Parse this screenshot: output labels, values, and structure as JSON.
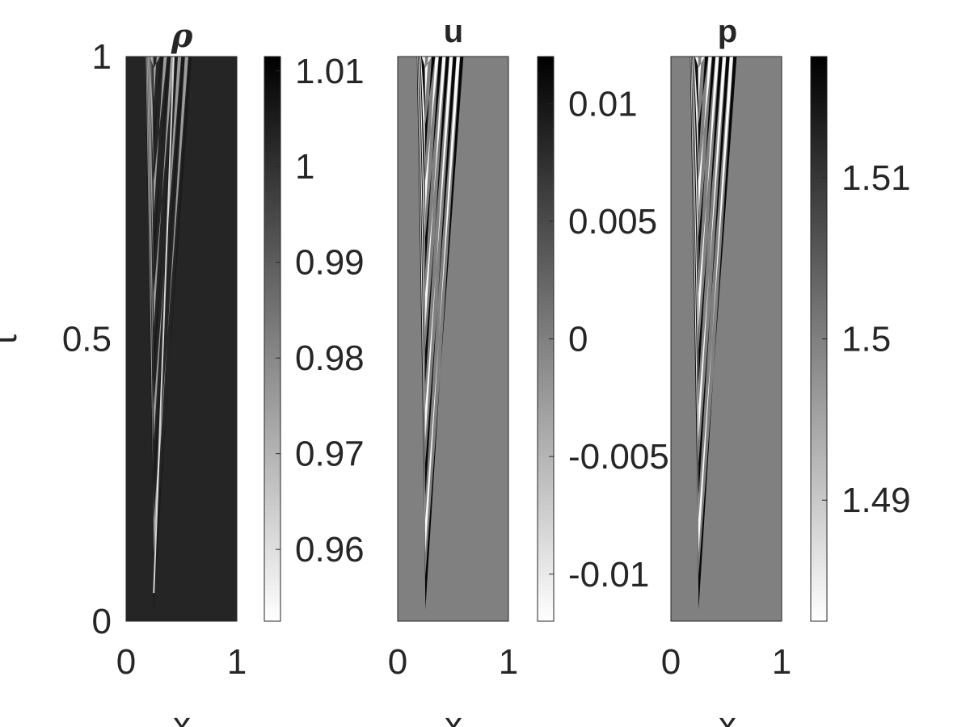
{
  "chart_data": [
    {
      "type": "heatmap",
      "title": "ρ",
      "xlabel": "x",
      "ylabel": "t",
      "xlim": [
        0,
        1
      ],
      "ylim": [
        0,
        1
      ],
      "xticks": [
        "0",
        "1"
      ],
      "yticks": [
        "0",
        "0.5",
        "1"
      ],
      "colormap": "gray-reversed",
      "clim": [
        0.9525,
        1.0115
      ],
      "background_value": 1.003,
      "colorbar_ticks": [
        {
          "value": 0.96,
          "label": "0.96"
        },
        {
          "value": 0.97,
          "label": "0.97"
        },
        {
          "value": 0.98,
          "label": "0.98"
        },
        {
          "value": 0.99,
          "label": "0.99"
        },
        {
          "value": 1.0,
          "label": "1"
        },
        {
          "value": 1.01,
          "label": "1.01"
        }
      ],
      "wave_source_x": 0.25,
      "wave_speed": 0.32,
      "wave_front_x_at_t1": 0.57,
      "contact_x": 0.25
    },
    {
      "type": "heatmap",
      "title": "u",
      "xlabel": "x",
      "xlim": [
        0,
        1
      ],
      "ylim": [
        0,
        1
      ],
      "xticks": [
        "0",
        "1"
      ],
      "colormap": "gray-reversed",
      "clim": [
        -0.012,
        0.012
      ],
      "background_value": 0.0,
      "colorbar_ticks": [
        {
          "value": -0.01,
          "label": "-0.01"
        },
        {
          "value": -0.005,
          "label": "-0.005"
        },
        {
          "value": 0,
          "label": "0"
        },
        {
          "value": 0.005,
          "label": "0.005"
        },
        {
          "value": 0.01,
          "label": "0.01"
        }
      ],
      "wave_source_x": 0.25,
      "wave_speed": 0.32,
      "wave_front_x_at_t1": 0.57
    },
    {
      "type": "heatmap",
      "title": "p",
      "xlabel": "x",
      "xlim": [
        0,
        1
      ],
      "ylim": [
        0,
        1
      ],
      "xticks": [
        "0",
        "1"
      ],
      "colormap": "gray-reversed",
      "clim": [
        1.4825,
        1.5175
      ],
      "background_value": 1.5,
      "colorbar_ticks": [
        {
          "value": 1.49,
          "label": "1.49"
        },
        {
          "value": 1.5,
          "label": "1.5"
        },
        {
          "value": 1.51,
          "label": "1.51"
        }
      ],
      "wave_source_x": 0.25,
      "wave_speed": 0.32,
      "wave_front_x_at_t1": 0.57
    }
  ]
}
